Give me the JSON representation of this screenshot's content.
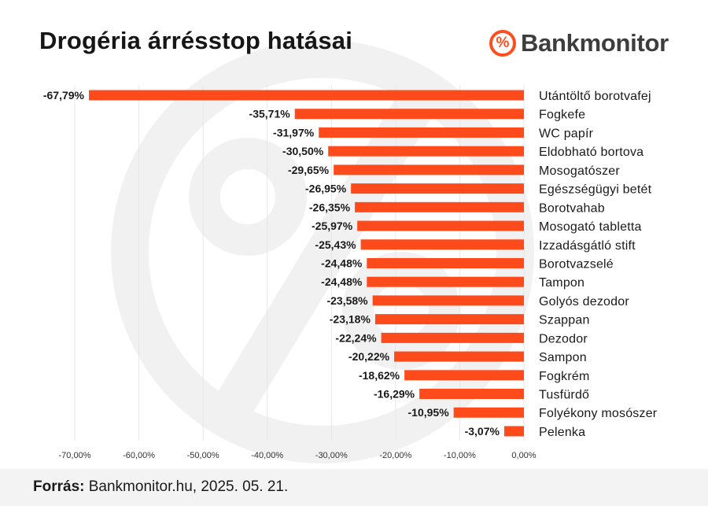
{
  "header": {
    "title": "Drogéria árrésstop hatásai",
    "brand": "Bankmonitor",
    "brand_mark": "%"
  },
  "colors": {
    "bar": "#ff4a1c",
    "grid": "#e6e6e6",
    "watermark": "#f1f1f1"
  },
  "chart_data": {
    "type": "bar",
    "orientation": "horizontal",
    "title": "Drogéria árrésstop hatásai",
    "categories": [
      "Utántöltő borotvafej",
      "Fogkefe",
      "WC papír",
      "Eldobható bortova",
      "Mosogatószer",
      "Egészségügyi betét",
      "Borotvahab",
      "Mosogató tabletta",
      "Izzadásgátló stift",
      "Borotvazselé",
      "Tampon",
      "Golyós dezodor",
      "Szappan",
      "Dezodor",
      "Sampon",
      "Fogkrém",
      "Tusfürdő",
      "Folyékony mosószer",
      "Pelenka"
    ],
    "values": [
      -67.79,
      -35.71,
      -31.97,
      -30.5,
      -29.65,
      -26.95,
      -26.35,
      -25.97,
      -25.43,
      -24.48,
      -24.48,
      -23.58,
      -23.18,
      -22.24,
      -20.22,
      -18.62,
      -16.29,
      -10.95,
      -3.07
    ],
    "value_labels": [
      "-67,79%",
      "-35,71%",
      "-31,97%",
      "-30,50%",
      "-29,65%",
      "-26,95%",
      "-26,35%",
      "-25,97%",
      "-25,43%",
      "-24,48%",
      "-24,48%",
      "-23,58%",
      "-23,18%",
      "-22,24%",
      "-20,22%",
      "-18,62%",
      "-16,29%",
      "-10,95%",
      "-3,07%"
    ],
    "xlim": [
      -70,
      0
    ],
    "x_ticks": [
      -70,
      -60,
      -50,
      -40,
      -30,
      -20,
      -10,
      0
    ],
    "x_tick_labels": [
      "-70,00%",
      "-60,00%",
      "-50,00%",
      "-40,00%",
      "-30,00%",
      "-20,00%",
      "-10,00%",
      "0,00%"
    ],
    "grid": true,
    "legend": "none"
  },
  "footer": {
    "source_label": "Forrás:",
    "source_text": " Bankmonitor.hu, 2025. 05. 21."
  }
}
